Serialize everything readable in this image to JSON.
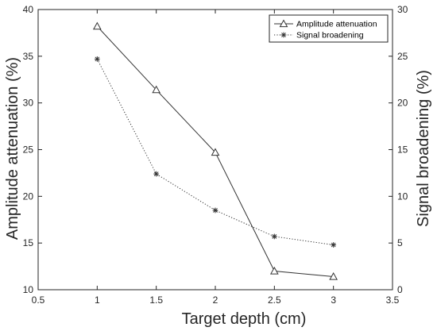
{
  "chart_data": {
    "type": "line",
    "xlabel": "Target depth (cm)",
    "ylabel_left": "Amplitude attenuation (%)",
    "ylabel_right": "Signal broadening (%)",
    "xlim": [
      0.5,
      3.5
    ],
    "ylim_left": [
      10,
      40
    ],
    "ylim_right": [
      0,
      30
    ],
    "x_ticks": [
      "0.5",
      "1",
      "1.5",
      "2",
      "2.5",
      "3",
      "3.5"
    ],
    "y_left_ticks": [
      "10",
      "15",
      "20",
      "25",
      "30",
      "35",
      "40"
    ],
    "y_right_ticks": [
      "0",
      "5",
      "10",
      "15",
      "20",
      "25",
      "30"
    ],
    "grid": false,
    "legend_position": "top-right",
    "x": [
      1,
      1.5,
      2,
      2.5,
      3
    ],
    "series": [
      {
        "name": "Amplitude attenuation",
        "axis": "left",
        "values": [
          38.2,
          31.4,
          24.7,
          12.0,
          11.4
        ],
        "line_style": "solid",
        "marker": "triangle",
        "color": "#333333"
      },
      {
        "name": "Signal broadening",
        "axis": "right",
        "values": [
          24.7,
          12.4,
          8.5,
          5.7,
          4.8
        ],
        "line_style": "dotted",
        "marker": "asterisk",
        "color": "#333333"
      }
    ]
  }
}
